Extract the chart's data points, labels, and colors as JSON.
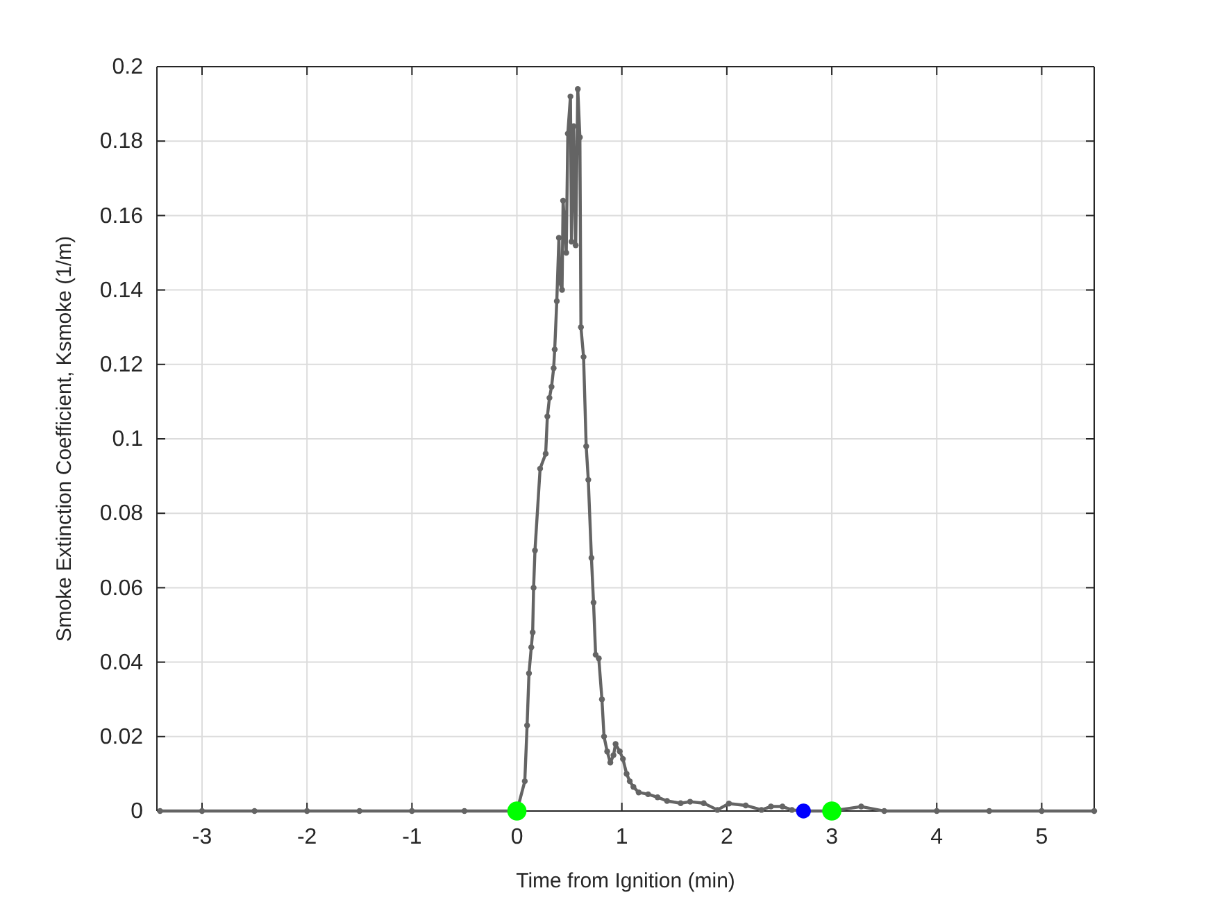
{
  "chart_data": {
    "type": "line",
    "xlabel": "Time from Ignition (min)",
    "ylabel": "Smoke Extinction Coefficient, Ksmoke (1/m)",
    "xlim": [
      -3.43,
      5.5
    ],
    "ylim": [
      0,
      0.2
    ],
    "xticks": [
      -3,
      -2,
      -1,
      0,
      1,
      2,
      3,
      4,
      5
    ],
    "yticks": [
      0,
      0.02,
      0.04,
      0.06,
      0.08,
      0.1,
      0.12,
      0.14,
      0.16,
      0.18,
      0.2
    ],
    "grid": true,
    "marker": "circle",
    "line_style": "solid",
    "series": [
      {
        "color": "#646464",
        "x": [
          -3.4,
          -3,
          -2.5,
          -2,
          -1.5,
          -1,
          -0.5,
          0,
          0.075,
          0.097,
          0.115,
          0.137,
          0.15,
          0.159,
          0.172,
          0.221,
          0.274,
          0.29,
          0.31,
          0.33,
          0.35,
          0.36,
          0.38,
          0.4,
          0.41,
          0.43,
          0.44,
          0.47,
          0.485,
          0.51,
          0.52,
          0.54,
          0.56,
          0.58,
          0.6,
          0.61,
          0.635,
          0.66,
          0.68,
          0.71,
          0.73,
          0.75,
          0.78,
          0.81,
          0.83,
          0.86,
          0.89,
          0.92,
          0.94,
          0.98,
          1.01,
          1.045,
          1.075,
          1.11,
          1.16,
          1.25,
          1.34,
          1.43,
          1.56,
          1.65,
          1.78,
          1.91,
          2.02,
          2.18,
          2.33,
          2.42,
          2.53,
          2.62,
          2.73,
          3,
          3.28,
          3.5,
          4,
          4.5,
          5,
          5.5
        ],
        "values": [
          0,
          0,
          0,
          0,
          0,
          0,
          0,
          0,
          0.008,
          0.023,
          0.037,
          0.044,
          0.048,
          0.06,
          0.07,
          0.092,
          0.096,
          0.106,
          0.111,
          0.114,
          0.119,
          0.124,
          0.137,
          0.154,
          0.142,
          0.14,
          0.164,
          0.15,
          0.182,
          0.192,
          0.153,
          0.184,
          0.152,
          0.194,
          0.181,
          0.13,
          0.122,
          0.098,
          0.089,
          0.068,
          0.056,
          0.042,
          0.041,
          0.03,
          0.02,
          0.016,
          0.013,
          0.015,
          0.018,
          0.016,
          0.014,
          0.01,
          0.008,
          0.0065,
          0.005,
          0.0045,
          0.0037,
          0.0027,
          0.0021,
          0.0025,
          0.0021,
          0.0003,
          0.002,
          0.0015,
          0.0003,
          0.0012,
          0.0012,
          0.0003,
          0,
          0,
          0.0012,
          0,
          0,
          0,
          0,
          0
        ]
      },
      {
        "type": "scatter",
        "color": "#00ff00",
        "x": [
          0,
          3
        ],
        "values": [
          0,
          0
        ]
      },
      {
        "type": "scatter",
        "color": "#0000ff",
        "x": [
          2.73
        ],
        "values": [
          0
        ]
      }
    ]
  }
}
